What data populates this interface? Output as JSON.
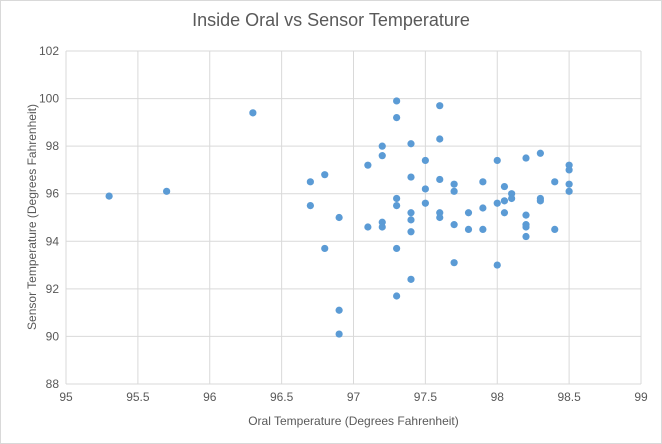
{
  "chart_data": {
    "type": "scatter",
    "title": "Inside Oral vs Sensor Temperature",
    "xlabel": "Oral Temperature (Degrees Fahrenheit)",
    "ylabel": "Sensor Temperature (Degrees Fahrenheit)",
    "xlim": [
      95,
      99
    ],
    "ylim": [
      88,
      102
    ],
    "x_ticks": [
      "95",
      "95.5",
      "96",
      "96.5",
      "97",
      "97.5",
      "98",
      "98.5",
      "99"
    ],
    "y_ticks": [
      "88",
      "90",
      "92",
      "94",
      "96",
      "98",
      "100",
      "102"
    ],
    "grid": true,
    "marker_color": "#5b9bd5",
    "series": [
      {
        "name": "Readings",
        "points": [
          [
            95.3,
            95.9
          ],
          [
            95.7,
            96.1
          ],
          [
            96.3,
            99.4
          ],
          [
            96.7,
            96.5
          ],
          [
            96.7,
            95.5
          ],
          [
            96.8,
            96.8
          ],
          [
            96.8,
            93.7
          ],
          [
            96.9,
            95.0
          ],
          [
            96.9,
            91.1
          ],
          [
            96.9,
            90.1
          ],
          [
            97.1,
            97.2
          ],
          [
            97.1,
            94.6
          ],
          [
            97.2,
            98.0
          ],
          [
            97.2,
            97.6
          ],
          [
            97.2,
            94.8
          ],
          [
            97.2,
            94.6
          ],
          [
            97.3,
            99.9
          ],
          [
            97.3,
            99.2
          ],
          [
            97.3,
            95.8
          ],
          [
            97.3,
            95.5
          ],
          [
            97.3,
            93.7
          ],
          [
            97.3,
            91.7
          ],
          [
            97.4,
            98.1
          ],
          [
            97.4,
            96.7
          ],
          [
            97.4,
            95.2
          ],
          [
            97.4,
            94.9
          ],
          [
            97.4,
            94.4
          ],
          [
            97.4,
            92.4
          ],
          [
            97.5,
            97.4
          ],
          [
            97.5,
            96.2
          ],
          [
            97.5,
            95.6
          ],
          [
            97.6,
            99.7
          ],
          [
            97.6,
            98.3
          ],
          [
            97.6,
            96.6
          ],
          [
            97.6,
            95.2
          ],
          [
            97.6,
            95.0
          ],
          [
            97.7,
            96.4
          ],
          [
            97.7,
            96.1
          ],
          [
            97.7,
            94.7
          ],
          [
            97.7,
            93.1
          ],
          [
            97.8,
            95.2
          ],
          [
            97.8,
            94.5
          ],
          [
            97.9,
            96.5
          ],
          [
            97.9,
            95.4
          ],
          [
            97.9,
            94.5
          ],
          [
            98.0,
            97.4
          ],
          [
            98.0,
            95.6
          ],
          [
            98.0,
            93.0
          ],
          [
            98.05,
            96.3
          ],
          [
            98.05,
            95.7
          ],
          [
            98.05,
            95.2
          ],
          [
            98.1,
            96.0
          ],
          [
            98.1,
            95.8
          ],
          [
            98.2,
            97.5
          ],
          [
            98.2,
            95.1
          ],
          [
            98.2,
            94.7
          ],
          [
            98.2,
            94.6
          ],
          [
            98.2,
            94.2
          ],
          [
            98.3,
            97.7
          ],
          [
            98.3,
            95.8
          ],
          [
            98.3,
            95.7
          ],
          [
            98.4,
            96.5
          ],
          [
            98.4,
            94.5
          ],
          [
            98.5,
            97.2
          ],
          [
            98.5,
            97.0
          ],
          [
            98.5,
            96.4
          ],
          [
            98.5,
            96.1
          ]
        ]
      }
    ]
  }
}
